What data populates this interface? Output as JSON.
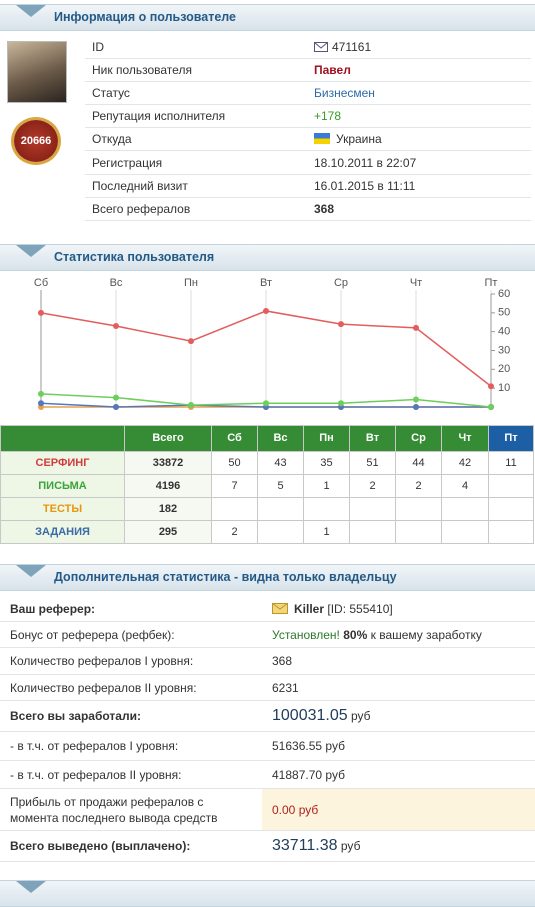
{
  "user_info": {
    "title": "Информация о пользователе",
    "badge": "20666",
    "rows": [
      {
        "label": "ID",
        "value": "471161"
      },
      {
        "label": "Ник пользователя",
        "value": "Павел"
      },
      {
        "label": "Статус",
        "value": "Бизнесмен"
      },
      {
        "label": "Репутация исполнителя",
        "value": "+178"
      },
      {
        "label": "Откуда",
        "value": "Украина"
      },
      {
        "label": "Регистрация",
        "value": "18.10.2011 в 22:07"
      },
      {
        "label": "Последний визит",
        "value": "16.01.2015 в 11:11"
      },
      {
        "label": "Всего рефералов",
        "value": "368"
      }
    ]
  },
  "stats_title": "Статистика пользователя",
  "chart_data": {
    "type": "line",
    "categories": [
      "Сб",
      "Вс",
      "Пн",
      "Вт",
      "Ср",
      "Чт",
      "Пт"
    ],
    "series": [
      {
        "color": "#e8a050",
        "values": [
          0,
          0,
          0,
          0,
          0,
          0,
          0
        ]
      },
      {
        "color": "#5577bb",
        "values": [
          2,
          0,
          1,
          0,
          0,
          0,
          0
        ]
      },
      {
        "color": "#6ccf5a",
        "values": [
          7,
          5,
          1,
          2,
          2,
          4,
          0
        ]
      },
      {
        "color": "#e35d5d",
        "values": [
          50,
          43,
          35,
          51,
          44,
          42,
          11
        ]
      }
    ],
    "ylim": [
      0,
      60
    ],
    "yticks": [
      10,
      20,
      30,
      40,
      50,
      60
    ]
  },
  "table": {
    "header": [
      null,
      "Всего",
      "Сб",
      "Вс",
      "Пн",
      "Вт",
      "Ср",
      "Чт",
      "Пт"
    ],
    "rows": [
      [
        "СЕРФИНГ",
        33872,
        50,
        43,
        35,
        51,
        44,
        42,
        11
      ],
      [
        "ПИСЬМА",
        4196,
        7,
        5,
        1,
        2,
        2,
        4,
        null
      ],
      [
        "ТЕСТЫ",
        182,
        null,
        null,
        null,
        null,
        null,
        null,
        null
      ],
      [
        "ЗАДАНИЯ",
        295,
        2,
        null,
        1,
        null,
        null,
        null,
        null
      ]
    ]
  },
  "extra": {
    "title": "Дополнительная статистика - видна только владельцу",
    "referrer": {
      "label": "Ваш реферер:",
      "name": "Killer",
      "id": "[ID: 555410]"
    },
    "bonus": {
      "label": "Бонус от реферера (рефбек):",
      "status": "Установлен!",
      "percent": "80%",
      "rest": "к вашему заработку"
    },
    "ref1": {
      "label": "Количество рефералов I уровня:",
      "value": "368"
    },
    "ref2": {
      "label": "Количество рефералов II уровня:",
      "value": "6231"
    },
    "earned": {
      "label": "Всего вы заработали:",
      "amount": "100031.05",
      "unit": "руб"
    },
    "earned1": {
      "label": "- в т.ч. от рефералов I уровня:",
      "amount": "51636.55",
      "unit": "руб"
    },
    "earned2": {
      "label": "- в т.ч. от рефералов II уровня:",
      "amount": "41887.70",
      "unit": "руб"
    },
    "sale": {
      "label": "Прибыль от продажи рефералов с момента последнего вывода средств",
      "amount": "0.00",
      "unit": "руб"
    },
    "paid": {
      "label": "Всего выведено (выплачено):",
      "amount": "33711.38",
      "unit": "руб"
    }
  }
}
